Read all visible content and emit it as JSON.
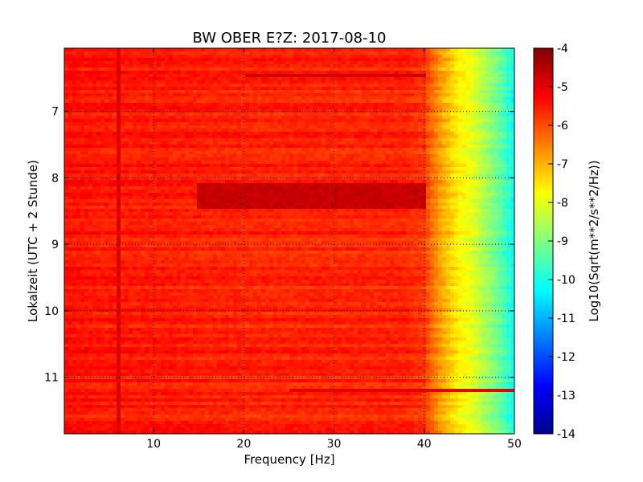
{
  "chart_data": {
    "type": "heatmap",
    "title": "BW OBER E?Z: 2017-08-10",
    "xlabel": "Frequency [Hz]",
    "ylabel": "Lokalzeit (UTC + 2 Stunde)",
    "xlim": [
      0.1,
      50
    ],
    "ylim": [
      11.85,
      6.05
    ],
    "y_inverted": true,
    "x_ticks": [
      "10",
      "20",
      "30",
      "40",
      "50"
    ],
    "x_tick_values": [
      10,
      20,
      30,
      40,
      50
    ],
    "y_ticks": [
      "7",
      "8",
      "9",
      "10",
      "11"
    ],
    "y_tick_values": [
      7,
      8,
      9,
      10,
      11
    ],
    "grid": true,
    "colormap": "jet",
    "colorbar": {
      "label": "Log10(Sqrt(m**2/s**2/Hz))",
      "range": [
        -14,
        -4
      ],
      "ticks": [
        "-4",
        "-5",
        "-6",
        "-7",
        "-8",
        "-9",
        "-10",
        "-11",
        "-12",
        "-13",
        "-14"
      ],
      "tick_values": [
        -4,
        -5,
        -6,
        -7,
        -8,
        -9,
        -10,
        -11,
        -12,
        -13,
        -14
      ]
    },
    "z_profile_vs_frequency": {
      "frequency_hz": [
        0,
        5,
        10,
        20,
        30,
        38,
        40,
        41,
        42,
        43,
        44,
        45,
        46,
        47,
        48,
        49,
        50
      ],
      "log10_amplitude": [
        -5.4,
        -5.5,
        -5.5,
        -5.6,
        -5.6,
        -5.6,
        -5.8,
        -6.4,
        -6.9,
        -7.3,
        -7.7,
        -7.9,
        -8.3,
        -8.7,
        -9.1,
        -9.6,
        -10.2
      ]
    },
    "features": [
      {
        "label": "strong band",
        "time_range": [
          8.1,
          8.45
        ],
        "freq_range": [
          15,
          40
        ],
        "log10_amplitude": -4.7
      },
      {
        "label": "horizontal line",
        "time": 6.45,
        "freq_range": [
          20,
          40
        ],
        "log10_amplitude": -4.8
      },
      {
        "label": "horizontal line",
        "time": 11.2,
        "freq_range": [
          25,
          50
        ],
        "log10_amplitude": -5.0
      },
      {
        "label": "vertical line",
        "frequency_hz": 6,
        "log10_amplitude": -4.9
      }
    ]
  }
}
